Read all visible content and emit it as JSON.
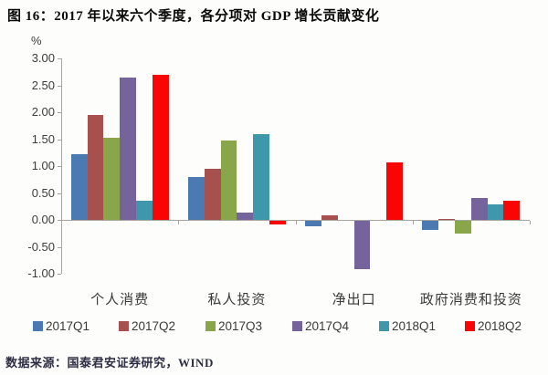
{
  "title": "图 16：2017 年以来六个季度，各分项对 GDP 增长贡献变化",
  "footer": "数据来源：国泰君安证券研究，WIND",
  "chart_data": {
    "type": "bar",
    "title": "2017 年以来六个季度，各分项对 GDP 增长贡献变化",
    "unit_label": "%",
    "xlabel": "",
    "ylabel": "%",
    "categories": [
      "个人消费",
      "私人投资",
      "净出口",
      "政府消费和投资"
    ],
    "series": [
      {
        "name": "2017Q1",
        "color": "#4b79b2",
        "values": [
          1.22,
          0.79,
          -0.1,
          -0.17
        ]
      },
      {
        "name": "2017Q2",
        "color": "#a8504e",
        "values": [
          1.95,
          0.95,
          0.08,
          0.02
        ]
      },
      {
        "name": "2017Q3",
        "color": "#8aa64a",
        "values": [
          1.52,
          1.47,
          0.0,
          -0.24
        ]
      },
      {
        "name": "2017Q4",
        "color": "#75639c",
        "values": [
          2.64,
          0.14,
          -0.9,
          0.41
        ]
      },
      {
        "name": "2018Q1",
        "color": "#3e97aa",
        "values": [
          0.36,
          1.6,
          0.0,
          0.29
        ]
      },
      {
        "name": "2018Q2",
        "color": "#fa0505",
        "values": [
          2.69,
          -0.06,
          1.06,
          0.36
        ]
      }
    ],
    "ylim": [
      -1.0,
      3.0
    ],
    "ytick_step": 0.5,
    "ytick_labels": [
      "3.00",
      "2.50",
      "2.00",
      "1.50",
      "1.00",
      "0.50",
      "0.00",
      "-0.50",
      "-1.00"
    ],
    "grid": false,
    "legend_position": "bottom"
  }
}
